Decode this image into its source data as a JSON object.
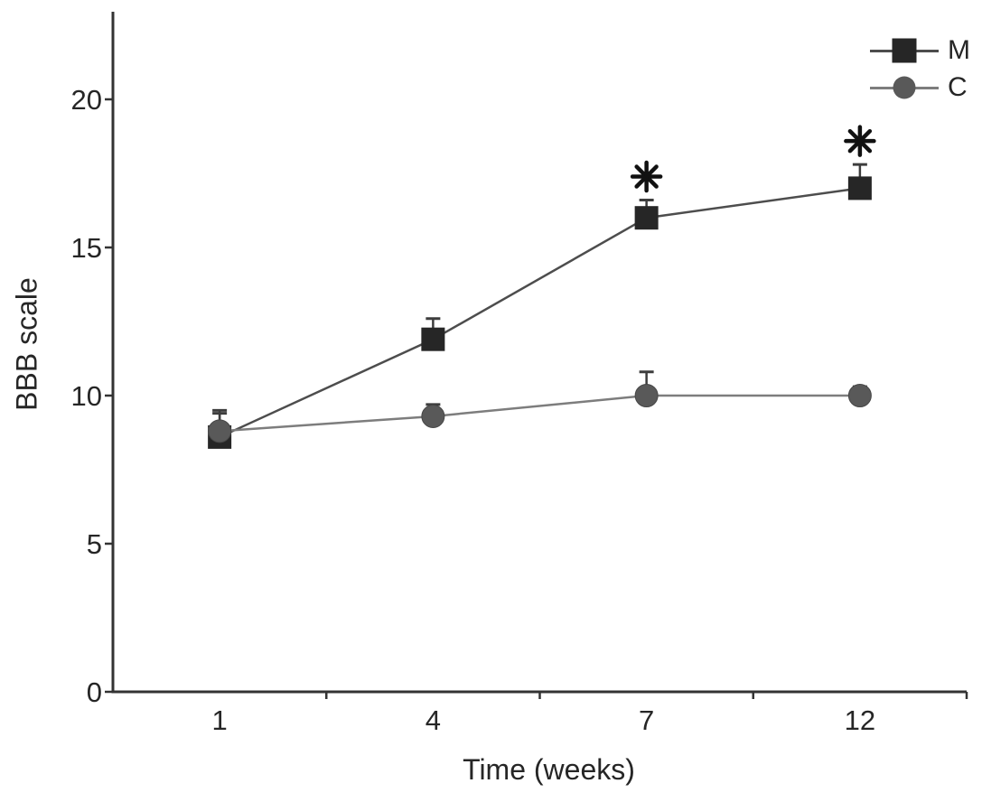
{
  "chart_data": {
    "type": "line",
    "title": "",
    "xlabel": "Time (weeks)",
    "ylabel": "BBB scale",
    "categories": [
      "1",
      "4",
      "7",
      "12"
    ],
    "y_ticks": [
      "0",
      "5",
      "10",
      "15",
      "20"
    ],
    "ylim": [
      0,
      23
    ],
    "grid": false,
    "legend_position": "top-right",
    "significance_symbol": "✳",
    "colors": {
      "axis": "#333333",
      "text": "#262626",
      "error": "#3d3d3d"
    },
    "series": [
      {
        "name": "M",
        "marker": "square",
        "color": "#262626",
        "line_color": "#4d4d4d",
        "values": [
          8.6,
          11.9,
          16.0,
          17.0
        ],
        "err_up": [
          0.9,
          0.7,
          0.6,
          0.8
        ],
        "significance": [
          false,
          false,
          true,
          true
        ]
      },
      {
        "name": "C",
        "marker": "circle",
        "color": "#595959",
        "line_color": "#7d7d7d",
        "values": [
          8.8,
          9.3,
          10.0,
          10.0
        ],
        "err_up": [
          0.6,
          0.4,
          0.8,
          0.3
        ],
        "significance": [
          false,
          false,
          false,
          false
        ]
      }
    ]
  }
}
